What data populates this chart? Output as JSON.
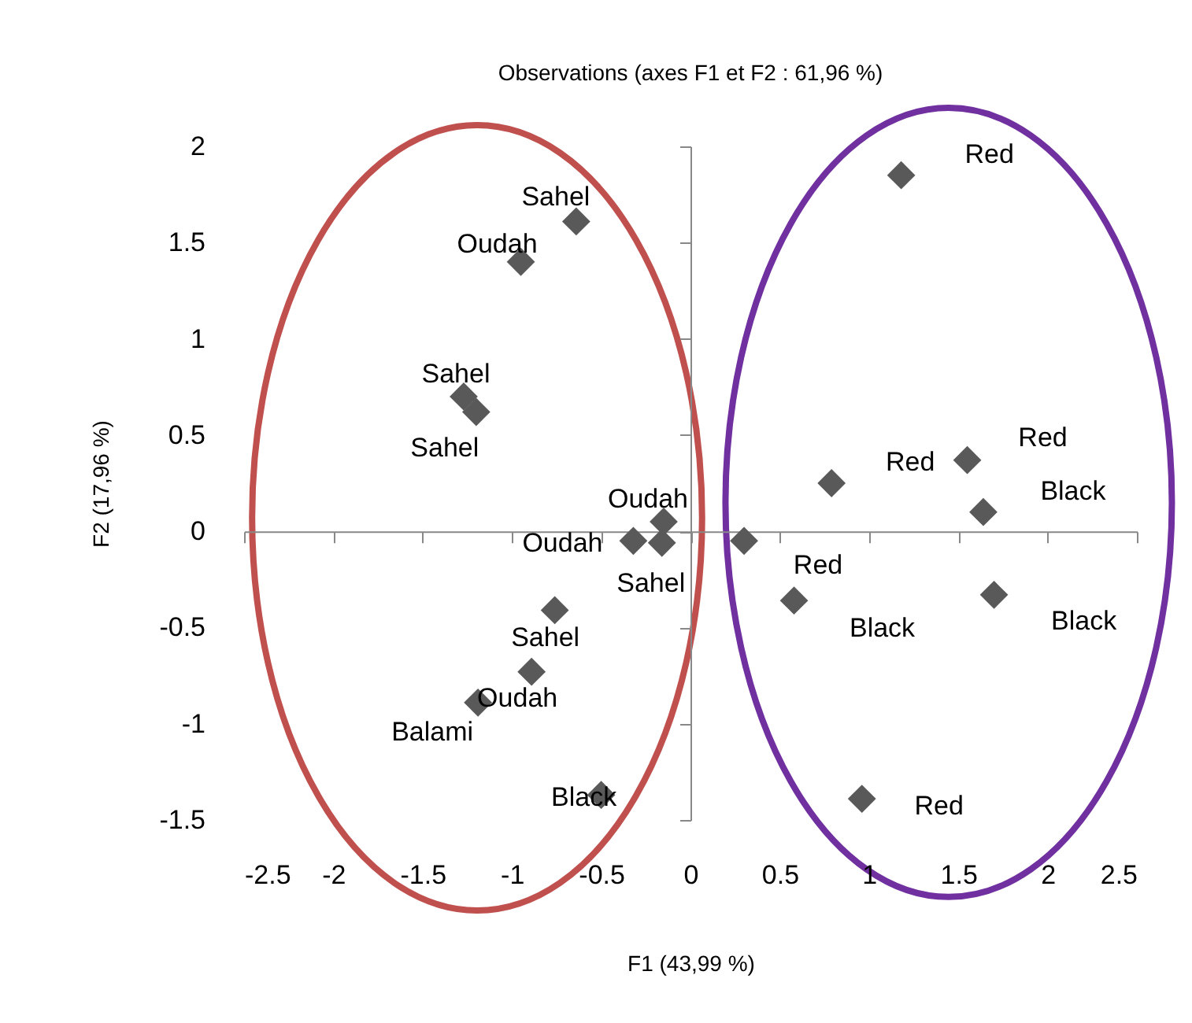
{
  "chart_data": {
    "type": "scatter",
    "title": "Observations (axes F1 et F2 : 61,96 %)",
    "xlabel": "F1 (43,99 %)",
    "ylabel": "F2 (17,96 %)",
    "x": [
      1.18,
      -0.64,
      -0.95,
      -1.27,
      -1.2,
      -0.15,
      -0.32,
      -0.16,
      0.3,
      0.79,
      1.55,
      1.64,
      0.58,
      1.7,
      -0.76,
      -0.89,
      -1.19,
      -0.5,
      0.96
    ],
    "series": [
      {
        "color": "#595959",
        "values": [
          1.85,
          1.61,
          1.4,
          0.7,
          0.62,
          0.05,
          -0.05,
          -0.06,
          -0.05,
          0.25,
          0.37,
          0.1,
          -0.36,
          -0.33,
          -0.41,
          -0.73,
          -0.89,
          -1.37,
          -1.39
        ]
      }
    ],
    "marker": "diamond",
    "xlim": [
      -2.5,
      2.5
    ],
    "xticks": [
      -2.5,
      -2,
      -1.5,
      -1,
      -0.5,
      0,
      0.5,
      1,
      1.5,
      2,
      2.5
    ],
    "ylim": [
      -1.5,
      2
    ],
    "yticks": [
      -1.5,
      -1,
      -0.5,
      0,
      0.5,
      1,
      1.5,
      2
    ],
    "annotations": [
      {
        "text": "Red",
        "x": 1.18,
        "y": 1.85
      },
      {
        "text": "Sahel",
        "x": -0.64,
        "y": 1.61
      },
      {
        "text": "Oudah",
        "x": -0.95,
        "y": 1.4
      },
      {
        "text": "Sahel",
        "x": -1.27,
        "y": 0.7
      },
      {
        "text": "Sahel",
        "x": -1.2,
        "y": 0.62
      },
      {
        "text": "Oudah",
        "x": -0.15,
        "y": 0.05
      },
      {
        "text": "Oudah",
        "x": -0.32,
        "y": -0.05
      },
      {
        "text": "Sahel",
        "x": -0.16,
        "y": -0.06
      },
      {
        "text": "Red",
        "x": 0.3,
        "y": -0.05
      },
      {
        "text": "Red",
        "x": 0.79,
        "y": 0.25
      },
      {
        "text": "Red",
        "x": 1.55,
        "y": 0.37
      },
      {
        "text": "Black",
        "x": 1.64,
        "y": 0.1
      },
      {
        "text": "Black",
        "x": 0.58,
        "y": -0.36
      },
      {
        "text": "Black",
        "x": 1.7,
        "y": -0.33
      },
      {
        "text": "Sahel",
        "x": -0.76,
        "y": -0.41
      },
      {
        "text": "Oudah",
        "x": -0.89,
        "y": -0.73
      },
      {
        "text": "Balami",
        "x": -1.19,
        "y": -0.89
      },
      {
        "text": "Black",
        "x": -0.5,
        "y": -1.37
      },
      {
        "text": "Red",
        "x": 0.96,
        "y": -1.39
      }
    ]
  }
}
